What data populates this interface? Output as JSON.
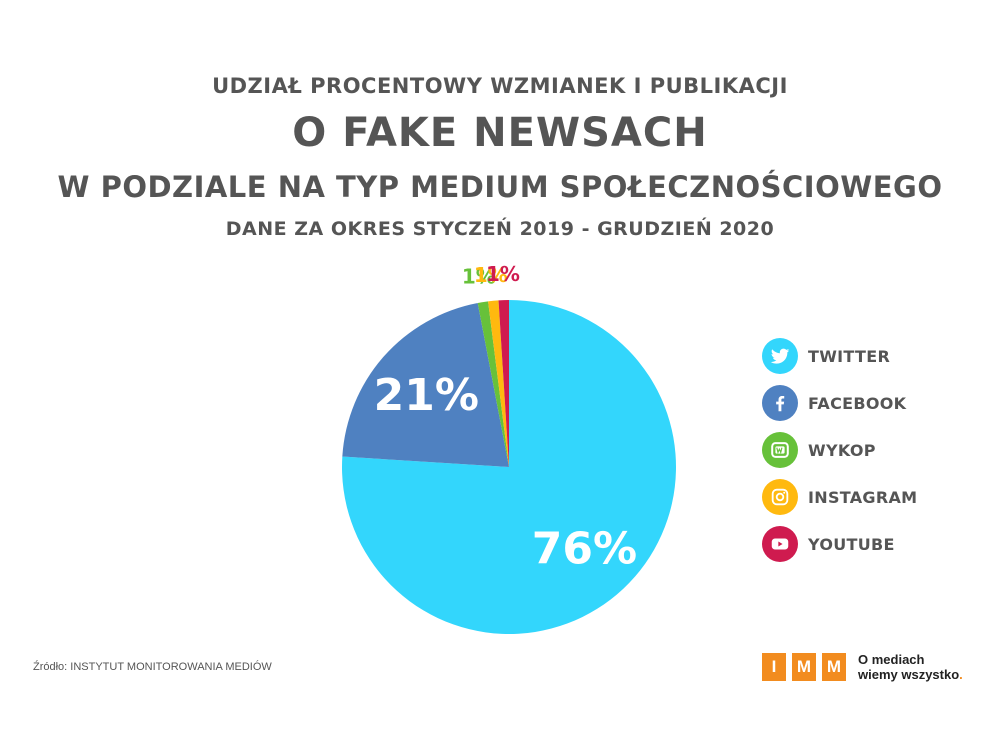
{
  "header": {
    "title_line1": "UDZIAŁ PROCENTOWY WZMIANEK I PUBLIKACJI",
    "title_main": "O FAKE NEWSACH",
    "title_line3": "W PODZIALE NA TYP MEDIUM SPOŁECZNOŚCIOWEGO",
    "period": "DANE ZA OKRES STYCZEŃ 2019 - GRUDZIEŃ 2020"
  },
  "chart_data": {
    "type": "pie",
    "title": "UDZIAŁ PROCENTOWY WZMIANEK I PUBLIKACJI O FAKE NEWSACH W PODZIALE NA TYP MEDIUM SPOŁECZNOŚCIOWEGO",
    "subtitle": "DANE ZA OKRES STYCZEŃ 2019 - GRUDZIEŃ 2020",
    "legend_position": "right",
    "slices": [
      {
        "name": "TWITTER",
        "value": 76,
        "label": "76%",
        "color": "#33d6fc"
      },
      {
        "name": "FACEBOOK",
        "value": 21,
        "label": "21%",
        "color": "#4f81c1"
      },
      {
        "name": "WYKOP",
        "value": 1,
        "label": "1%",
        "color": "#67c13a"
      },
      {
        "name": "INSTAGRAM",
        "value": 1,
        "label": "1%",
        "color": "#ffb90f"
      },
      {
        "name": "YOUTUBE",
        "value": 1,
        "label": "1%",
        "color": "#cf1b4f"
      }
    ]
  },
  "legend": {
    "items": [
      {
        "label": "TWITTER",
        "icon": "twitter-icon",
        "color": "#33d6fc"
      },
      {
        "label": "FACEBOOK",
        "icon": "facebook-icon",
        "color": "#4f81c1"
      },
      {
        "label": "WYKOP",
        "icon": "wykop-icon",
        "color": "#67c13a"
      },
      {
        "label": "INSTAGRAM",
        "icon": "instagram-icon",
        "color": "#ffb90f"
      },
      {
        "label": "YOUTUBE",
        "icon": "youtube-icon",
        "color": "#cf1b4f"
      }
    ]
  },
  "footer": {
    "source": "Źródło: INSTYTUT MONITOROWANIA MEDIÓW",
    "logo_letters": [
      "I",
      "M",
      "M"
    ],
    "tagline_line1": "O mediach",
    "tagline_line2": "wiemy wszystko",
    "tagline_dot": ".",
    "brand_color": "#f28c1f"
  }
}
